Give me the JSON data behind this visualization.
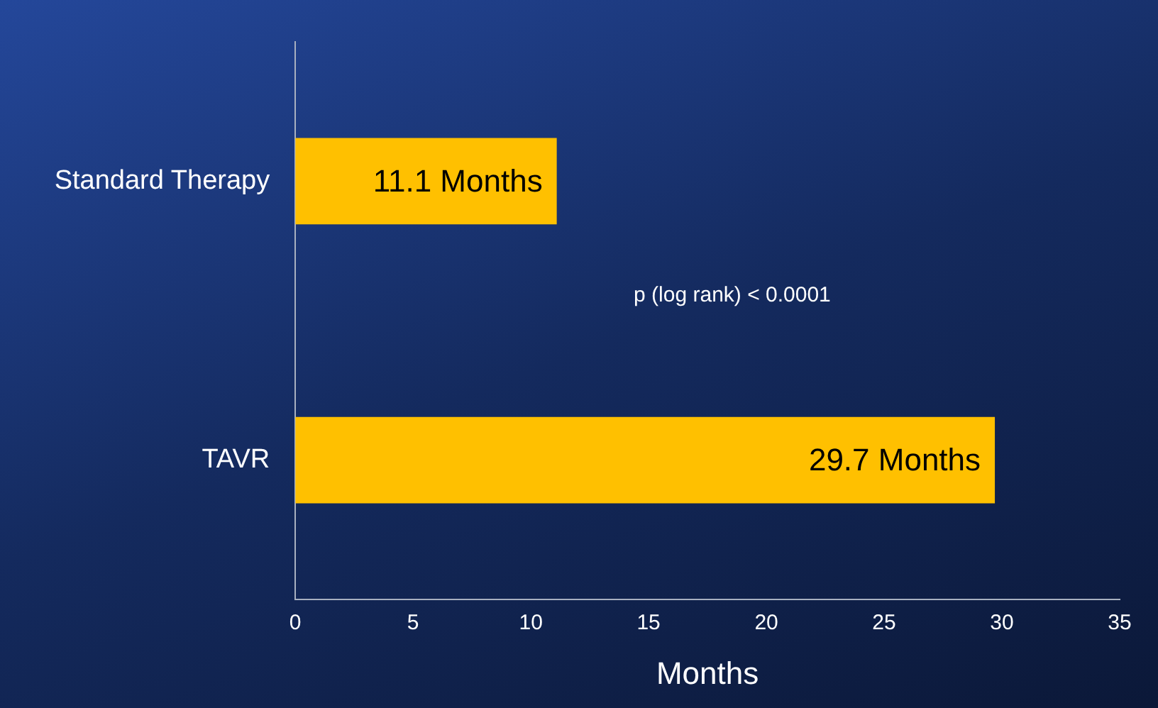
{
  "chart_data": {
    "type": "bar",
    "orientation": "horizontal",
    "categories": [
      "Standard Therapy",
      "TAVR"
    ],
    "values": [
      11.1,
      29.7
    ],
    "value_labels": [
      "11.1 Months",
      "29.7 Months"
    ],
    "color": "#ffc000",
    "xlim": [
      0,
      35
    ],
    "xticks": [
      0,
      5,
      10,
      15,
      20,
      25,
      30,
      35
    ],
    "xlabel": "Months",
    "annotations": [
      "p (log rank) < 0.0001"
    ],
    "grid": false,
    "legend": false
  }
}
